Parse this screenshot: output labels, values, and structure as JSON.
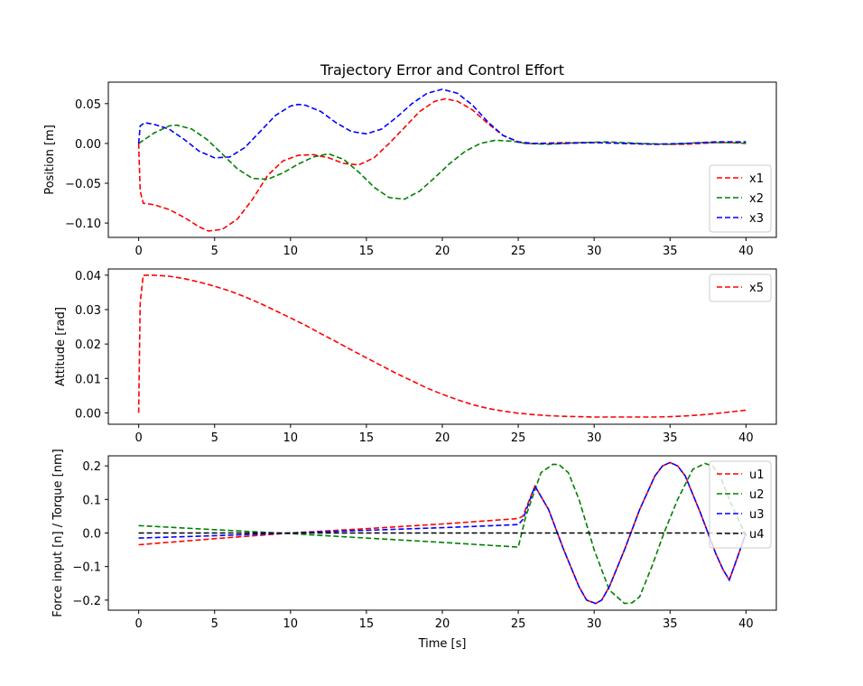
{
  "chart_data": [
    {
      "type": "line",
      "title": "Trajectory Error and Control Effort",
      "xlabel": "",
      "ylabel": "Position [m]",
      "xlim": [
        -2,
        42
      ],
      "ylim": [
        -0.118,
        0.077
      ],
      "xticks": [
        0,
        5,
        10,
        15,
        20,
        25,
        30,
        35,
        40
      ],
      "xtick_labels": [
        "0",
        "5",
        "10",
        "15",
        "20",
        "25",
        "30",
        "35",
        "40"
      ],
      "yticks": [
        -0.1,
        -0.05,
        0.0,
        0.05
      ],
      "ytick_labels": [
        "−0.10",
        "−0.05",
        "0.00",
        "0.05"
      ],
      "legend": "lower-right",
      "grid": false,
      "series": [
        {
          "name": "x1",
          "color": "#ff0000",
          "x": [
            0,
            0.1,
            0.3,
            1,
            2,
            3,
            4,
            4.6,
            5.5,
            6.5,
            7.5,
            8.5,
            9.5,
            10.5,
            11.5,
            12.5,
            13.5,
            14.5,
            15.5,
            16.5,
            17.5,
            18.5,
            19.5,
            20.2,
            21,
            22,
            23,
            24,
            25,
            25.5,
            26,
            28,
            30,
            32,
            34,
            36,
            38,
            40
          ],
          "y": [
            0.0,
            -0.06,
            -0.075,
            -0.077,
            -0.083,
            -0.093,
            -0.105,
            -0.11,
            -0.108,
            -0.095,
            -0.07,
            -0.04,
            -0.022,
            -0.015,
            -0.014,
            -0.018,
            -0.025,
            -0.027,
            -0.018,
            0.0,
            0.02,
            0.04,
            0.053,
            0.056,
            0.053,
            0.042,
            0.025,
            0.01,
            0.002,
            0.0,
            0.0,
            0.001,
            0.001,
            0.0,
            -0.001,
            -0.001,
            0.001,
            0.001
          ]
        },
        {
          "name": "x2",
          "color": "#008000",
          "x": [
            0,
            1,
            2,
            2.5,
            3.5,
            4.5,
            5.5,
            6.5,
            7.5,
            8.5,
            9.5,
            10.5,
            11.5,
            12.5,
            13.5,
            14.5,
            15.5,
            16.5,
            17.5,
            18.5,
            19.5,
            20.5,
            21.5,
            22.5,
            23.5,
            24.5,
            25.5,
            27,
            29,
            31,
            33,
            35,
            37,
            39,
            40
          ],
          "y": [
            0.0,
            0.013,
            0.022,
            0.023,
            0.018,
            0.005,
            -0.013,
            -0.032,
            -0.044,
            -0.045,
            -0.037,
            -0.026,
            -0.017,
            -0.013,
            -0.02,
            -0.036,
            -0.055,
            -0.068,
            -0.07,
            -0.06,
            -0.043,
            -0.025,
            -0.01,
            0.0,
            0.004,
            0.003,
            0.0,
            -0.001,
            0.001,
            0.002,
            0.0,
            -0.001,
            0.001,
            0.001,
            0.0
          ]
        },
        {
          "name": "x3",
          "color": "#0000ff",
          "x": [
            0,
            0.1,
            0.4,
            1,
            2,
            3,
            4,
            5,
            6,
            7,
            8,
            9,
            10,
            10.5,
            11,
            12,
            13,
            14,
            15,
            16,
            17,
            18,
            19,
            20,
            21,
            22,
            23,
            24,
            25,
            26,
            28,
            30,
            32,
            34,
            36,
            38,
            40
          ],
          "y": [
            0.0,
            0.022,
            0.026,
            0.024,
            0.018,
            0.005,
            -0.01,
            -0.018,
            -0.017,
            -0.005,
            0.015,
            0.035,
            0.047,
            0.049,
            0.048,
            0.04,
            0.026,
            0.015,
            0.012,
            0.018,
            0.033,
            0.05,
            0.063,
            0.068,
            0.063,
            0.048,
            0.027,
            0.01,
            0.002,
            0.0,
            0.0,
            0.001,
            0.0,
            -0.001,
            0.0,
            0.002,
            0.002
          ]
        }
      ]
    },
    {
      "type": "line",
      "title": "",
      "xlabel": "",
      "ylabel": "Attitude [rad]",
      "xlim": [
        -2,
        42
      ],
      "ylim": [
        -0.0033,
        0.0418
      ],
      "xticks": [
        0,
        5,
        10,
        15,
        20,
        25,
        30,
        35,
        40
      ],
      "xtick_labels": [
        "0",
        "5",
        "10",
        "15",
        "20",
        "25",
        "30",
        "35",
        "40"
      ],
      "yticks": [
        0.0,
        0.01,
        0.02,
        0.03,
        0.04
      ],
      "ytick_labels": [
        "0.00",
        "0.01",
        "0.02",
        "0.03",
        "0.04"
      ],
      "legend": "top-right",
      "grid": false,
      "series": [
        {
          "name": "x5",
          "color": "#ff0000",
          "x": [
            0,
            0.1,
            0.3,
            1,
            2,
            3,
            4,
            5,
            6,
            7,
            8,
            9,
            10,
            11,
            12,
            13,
            14,
            15,
            16,
            17,
            18,
            19,
            20,
            21,
            22,
            23,
            24,
            25,
            26,
            27,
            28,
            29,
            30,
            31,
            32,
            33,
            34,
            35,
            36,
            37,
            38,
            39,
            40
          ],
          "y": [
            0.0,
            0.032,
            0.04,
            0.04,
            0.0397,
            0.039,
            0.038,
            0.0368,
            0.0354,
            0.0337,
            0.0318,
            0.0297,
            0.0276,
            0.0254,
            0.023,
            0.0207,
            0.0183,
            0.016,
            0.0137,
            0.0114,
            0.0093,
            0.0072,
            0.0054,
            0.0038,
            0.0024,
            0.0013,
            0.0005,
            -0.0001,
            -0.0005,
            -0.0008,
            -0.001,
            -0.0011,
            -0.0012,
            -0.0012,
            -0.0012,
            -0.0012,
            -0.0012,
            -0.0011,
            -0.0009,
            -0.0006,
            -0.0002,
            0.0003,
            0.0008
          ]
        }
      ]
    },
    {
      "type": "line",
      "title": "",
      "xlabel": "Time [s]",
      "ylabel": "Force input [n] / Torque [nm]",
      "xlim": [
        -2,
        42
      ],
      "ylim": [
        -0.23,
        0.23
      ],
      "xticks": [
        0,
        5,
        10,
        15,
        20,
        25,
        30,
        35,
        40
      ],
      "xtick_labels": [
        "0",
        "5",
        "10",
        "15",
        "20",
        "25",
        "30",
        "35",
        "40"
      ],
      "yticks": [
        -0.2,
        -0.1,
        0.0,
        0.1,
        0.2
      ],
      "ytick_labels": [
        "−0.2",
        "−0.1",
        "0.0",
        "0.1",
        "0.2"
      ],
      "legend": "top-right",
      "grid": false,
      "series": [
        {
          "name": "u1",
          "color": "#ff0000",
          "x": [
            0,
            5,
            10,
            15,
            20,
            25,
            25.3,
            26.1,
            27,
            28,
            29,
            29.5,
            30.1,
            30.5,
            31,
            32,
            33,
            34,
            34.5,
            35,
            35.5,
            36,
            37,
            38,
            38.5,
            38.9,
            39.3,
            40
          ],
          "y": [
            -0.035,
            -0.017,
            0.0,
            0.013,
            0.027,
            0.043,
            0.05,
            0.14,
            0.07,
            -0.05,
            -0.16,
            -0.2,
            -0.21,
            -0.2,
            -0.16,
            -0.05,
            0.07,
            0.17,
            0.2,
            0.21,
            0.2,
            0.17,
            0.06,
            -0.06,
            -0.11,
            -0.14,
            -0.09,
            0.0
          ]
        },
        {
          "name": "u2",
          "color": "#008000",
          "x": [
            0,
            5,
            10,
            15,
            20,
            25,
            25.5,
            26.5,
            27.3,
            27.7,
            28.3,
            29,
            30,
            31,
            32,
            32.5,
            33,
            33.8,
            34.6,
            35.5,
            36.5,
            37.3,
            37.8,
            38.3,
            39,
            39.5,
            40
          ],
          "y": [
            0.022,
            0.01,
            -0.002,
            -0.015,
            -0.028,
            -0.042,
            0.05,
            0.18,
            0.205,
            0.203,
            0.18,
            0.1,
            -0.05,
            -0.17,
            -0.21,
            -0.208,
            -0.19,
            -0.1,
            0.0,
            0.1,
            0.19,
            0.207,
            0.2,
            0.17,
            0.09,
            0.04,
            -0.01
          ]
        },
        {
          "name": "u3",
          "color": "#0000ff",
          "x": [
            0,
            5,
            10,
            15,
            20,
            25,
            25.3,
            26.1,
            27,
            28,
            29,
            29.5,
            30.1,
            30.5,
            31,
            32,
            33,
            34,
            34.5,
            35,
            35.5,
            36,
            37,
            38,
            38.5,
            38.9,
            39.3,
            40
          ],
          "y": [
            -0.015,
            -0.008,
            0.0,
            0.008,
            0.016,
            0.025,
            0.04,
            0.14,
            0.07,
            -0.05,
            -0.16,
            -0.2,
            -0.21,
            -0.2,
            -0.16,
            -0.05,
            0.07,
            0.17,
            0.2,
            0.21,
            0.2,
            0.17,
            0.06,
            -0.06,
            -0.11,
            -0.14,
            -0.09,
            0.0
          ]
        },
        {
          "name": "u4",
          "color": "#000000",
          "x": [
            0,
            40
          ],
          "y": [
            0.0,
            0.0
          ]
        }
      ]
    }
  ]
}
